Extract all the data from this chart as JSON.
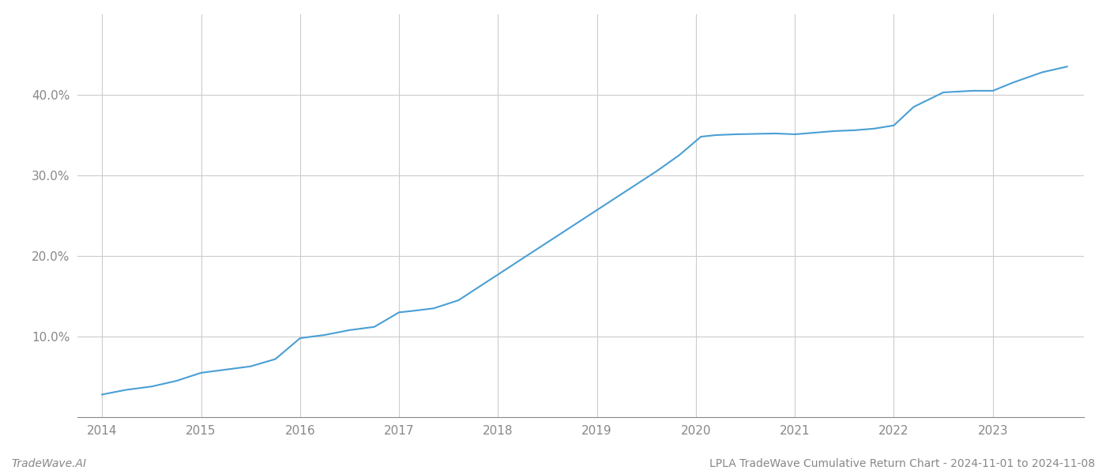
{
  "title": "LPLA TradeWave Cumulative Return Chart - 2024-11-01 to 2024-11-08",
  "watermark": "TradeWave.AI",
  "line_color": "#4a9fd4",
  "background_color": "#ffffff",
  "grid_color": "#cccccc",
  "x_years": [
    2014,
    2015,
    2016,
    2017,
    2018,
    2019,
    2020,
    2021,
    2022,
    2023
  ],
  "x_data": [
    2014.0,
    2014.08,
    2014.25,
    2014.5,
    2014.75,
    2015.0,
    2015.25,
    2015.5,
    2015.75,
    2016.0,
    2016.25,
    2016.5,
    2016.75,
    2017.0,
    2017.15,
    2017.35,
    2017.6,
    2017.85,
    2018.1,
    2018.35,
    2018.6,
    2018.85,
    2019.1,
    2019.35,
    2019.6,
    2019.83,
    2020.05,
    2020.2,
    2020.4,
    2020.6,
    2020.8,
    2021.0,
    2021.2,
    2021.4,
    2021.6,
    2021.8,
    2022.0,
    2022.2,
    2022.5,
    2022.8,
    2023.0,
    2023.2,
    2023.5,
    2023.75
  ],
  "y_data": [
    2.8,
    3.0,
    3.4,
    3.8,
    4.5,
    5.5,
    5.9,
    6.3,
    7.2,
    9.8,
    10.2,
    10.8,
    11.2,
    13.0,
    13.2,
    13.5,
    14.5,
    16.5,
    18.5,
    20.5,
    22.5,
    24.5,
    26.5,
    28.5,
    30.5,
    32.5,
    34.8,
    35.0,
    35.1,
    35.15,
    35.2,
    35.1,
    35.3,
    35.5,
    35.6,
    35.8,
    36.2,
    38.5,
    40.3,
    40.5,
    40.5,
    41.5,
    42.8,
    43.5
  ],
  "ylim": [
    0,
    50
  ],
  "yticks": [
    10.0,
    20.0,
    30.0,
    40.0
  ],
  "xlim": [
    2013.75,
    2023.92
  ],
  "title_fontsize": 10,
  "watermark_fontsize": 10,
  "tick_color": "#888888",
  "axis_color": "#888888",
  "line_width": 1.5
}
